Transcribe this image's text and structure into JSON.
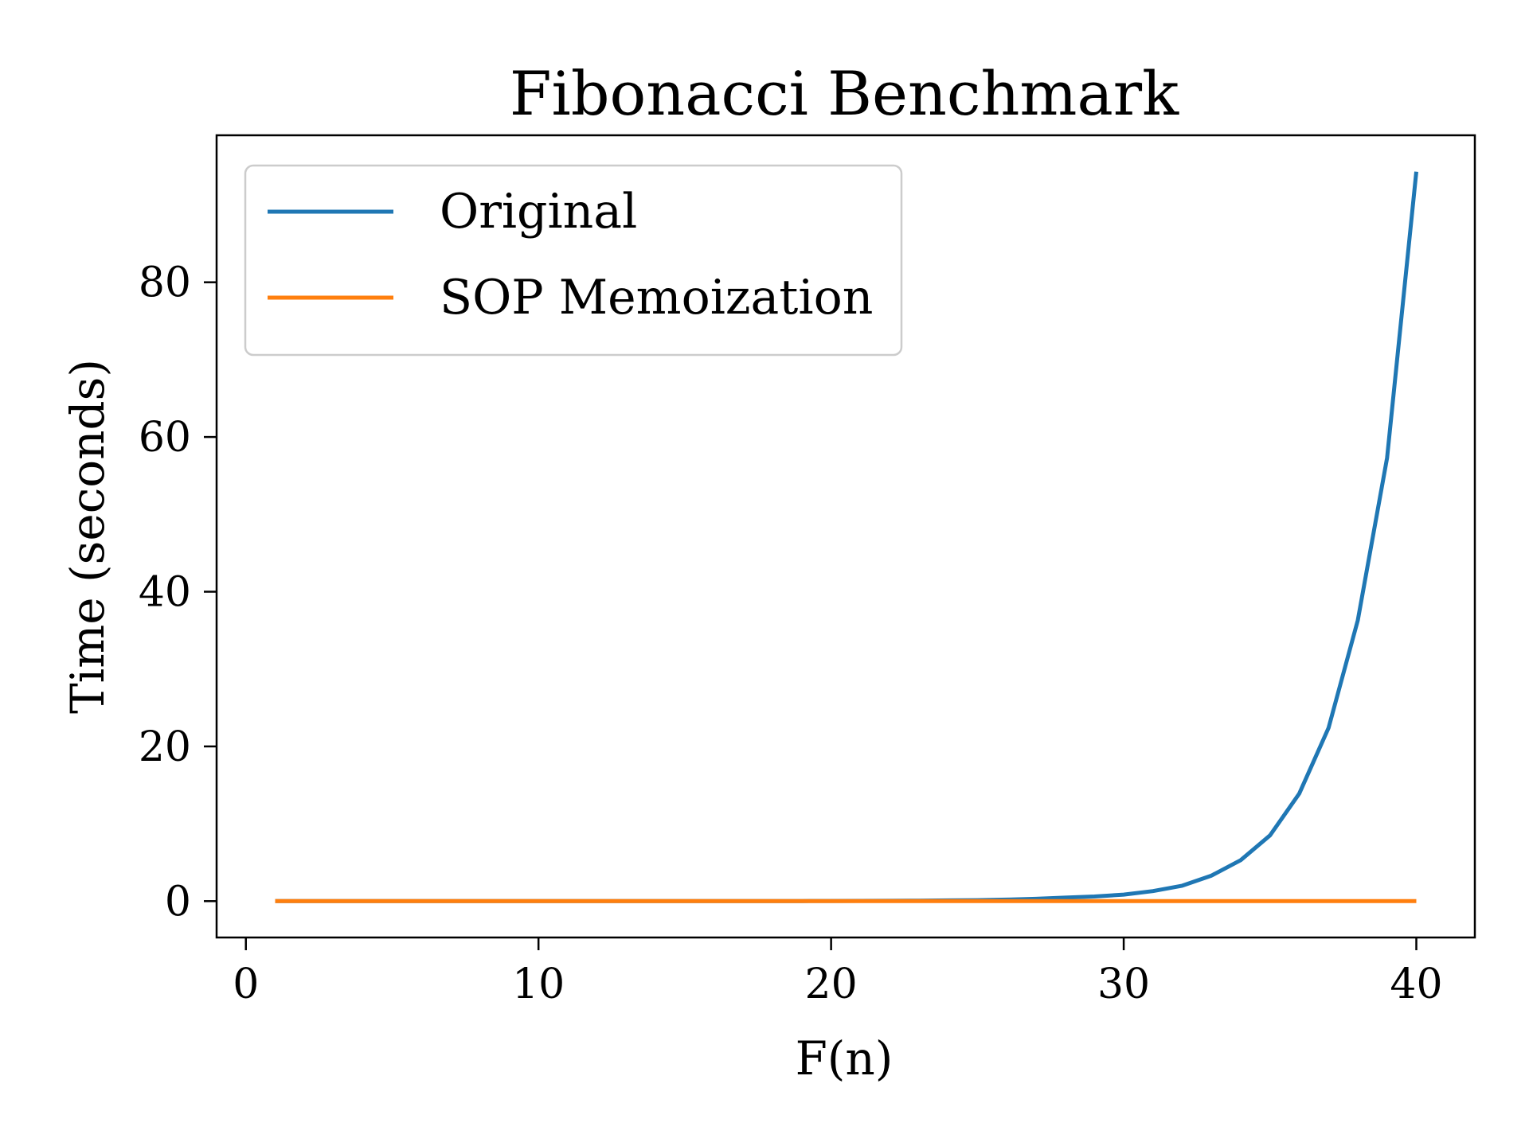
{
  "chart_data": {
    "type": "line",
    "title": "Fibonacci Benchmark",
    "xlabel": "F(n)",
    "ylabel": "Time (seconds)",
    "xlim": [
      -1,
      42
    ],
    "ylim": [
      -4.7,
      99
    ],
    "xticks": [
      0,
      10,
      20,
      30,
      40
    ],
    "yticks": [
      0,
      20,
      40,
      60,
      80
    ],
    "grid": false,
    "legend_position": "top-left",
    "x": [
      1,
      2,
      3,
      4,
      5,
      6,
      7,
      8,
      9,
      10,
      11,
      12,
      13,
      14,
      15,
      16,
      17,
      18,
      19,
      20,
      21,
      22,
      23,
      24,
      25,
      26,
      27,
      28,
      29,
      30,
      31,
      32,
      33,
      34,
      35,
      36,
      37,
      38,
      39,
      40
    ],
    "series": [
      {
        "name": "Original",
        "color": "#1f77b4",
        "values": [
          0,
          0,
          0,
          0,
          0,
          0,
          0,
          0,
          0,
          0,
          0,
          0,
          0,
          0,
          0,
          0,
          0,
          0.01,
          0.01,
          0.02,
          0.03,
          0.04,
          0.06,
          0.09,
          0.13,
          0.2,
          0.3,
          0.45,
          0.6,
          0.85,
          1.3,
          2.0,
          3.3,
          5.3,
          8.5,
          13.9,
          22.4,
          36.3,
          57.3,
          94.3
        ]
      },
      {
        "name": "SOP Memoization",
        "color": "#ff7f0e",
        "values": [
          0,
          0,
          0,
          0,
          0,
          0,
          0,
          0,
          0,
          0,
          0,
          0,
          0,
          0,
          0,
          0,
          0,
          0,
          0,
          0,
          0,
          0,
          0,
          0,
          0,
          0,
          0,
          0,
          0,
          0,
          0,
          0,
          0,
          0,
          0,
          0,
          0,
          0,
          0,
          0
        ]
      }
    ]
  }
}
